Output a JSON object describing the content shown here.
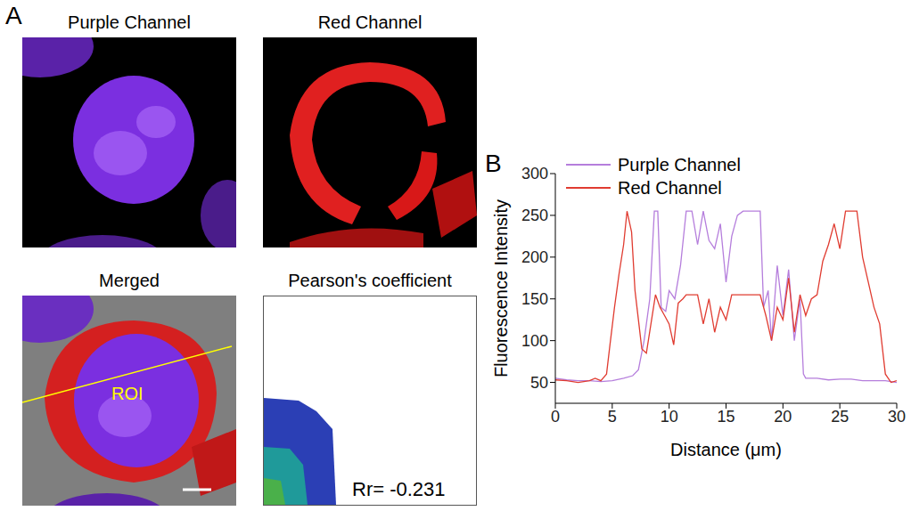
{
  "panel_a": {
    "label": "A",
    "images": [
      {
        "title": "Purple Channel"
      },
      {
        "title": "Red Channel"
      },
      {
        "title": "Merged",
        "annotation": "ROI"
      },
      {
        "title": "Pearson's coefficient",
        "annotation": "Rr= -0.231"
      }
    ]
  },
  "chart_data": {
    "type": "line",
    "panel_label": "B",
    "x_label": "Distance (μm)",
    "y_label": "Fluorescence Intensity",
    "xlim": [
      0,
      30
    ],
    "xticks": [
      0,
      5,
      10,
      15,
      20,
      25,
      30
    ],
    "ylim": [
      25,
      300
    ],
    "yticks": [
      50,
      100,
      150,
      200,
      250,
      300
    ],
    "legend": "upper left",
    "series": [
      {
        "name": "Purple Channel",
        "color": "#b57edc",
        "x": [
          0,
          1,
          2,
          3,
          4,
          5,
          6,
          6.8,
          7.3,
          7.8,
          8.3,
          8.7,
          9,
          9.3,
          9.7,
          10,
          10.5,
          11,
          11.5,
          12,
          12.5,
          13,
          13.5,
          14,
          14.5,
          15,
          15.5,
          16,
          16.5,
          17,
          18,
          18.3,
          18.7,
          19,
          19.5,
          20,
          20.5,
          21,
          21.5,
          21.8,
          22,
          23,
          24,
          25,
          26,
          27,
          28,
          29,
          30
        ],
        "values": [
          55,
          53,
          52,
          52,
          51,
          52,
          55,
          58,
          65,
          100,
          150,
          255,
          255,
          140,
          135,
          160,
          150,
          190,
          255,
          255,
          215,
          255,
          220,
          210,
          240,
          170,
          225,
          250,
          255,
          255,
          255,
          140,
          160,
          100,
          190,
          130,
          185,
          100,
          150,
          60,
          55,
          55,
          53,
          54,
          54,
          52,
          52,
          52,
          50
        ]
      },
      {
        "name": "Red Channel",
        "color": "#e03c31",
        "x": [
          0,
          1,
          2,
          3,
          3.5,
          4,
          4.5,
          4.8,
          5.2,
          5.6,
          6,
          6.3,
          6.7,
          7,
          7.3,
          7.6,
          8,
          8.4,
          8.8,
          9.2,
          9.6,
          10,
          10.4,
          10.8,
          11.2,
          11.5,
          12,
          12.5,
          13,
          13.5,
          14,
          14.5,
          15,
          15.5,
          16,
          17,
          18,
          18.5,
          19,
          19.5,
          20,
          20.5,
          21,
          21.5,
          22,
          22.5,
          23,
          23.5,
          24,
          24.5,
          25,
          25.5,
          26,
          26.5,
          27,
          27.5,
          28,
          28.5,
          29,
          29.5,
          30
        ],
        "values": [
          53,
          52,
          50,
          52,
          55,
          52,
          60,
          95,
          140,
          180,
          215,
          255,
          230,
          160,
          125,
          90,
          85,
          120,
          155,
          140,
          130,
          120,
          95,
          145,
          150,
          155,
          155,
          155,
          120,
          150,
          110,
          140,
          125,
          155,
          155,
          155,
          155,
          130,
          100,
          140,
          125,
          175,
          110,
          155,
          130,
          150,
          155,
          195,
          215,
          240,
          210,
          255,
          255,
          255,
          200,
          170,
          140,
          120,
          60,
          50,
          52
        ]
      }
    ]
  }
}
